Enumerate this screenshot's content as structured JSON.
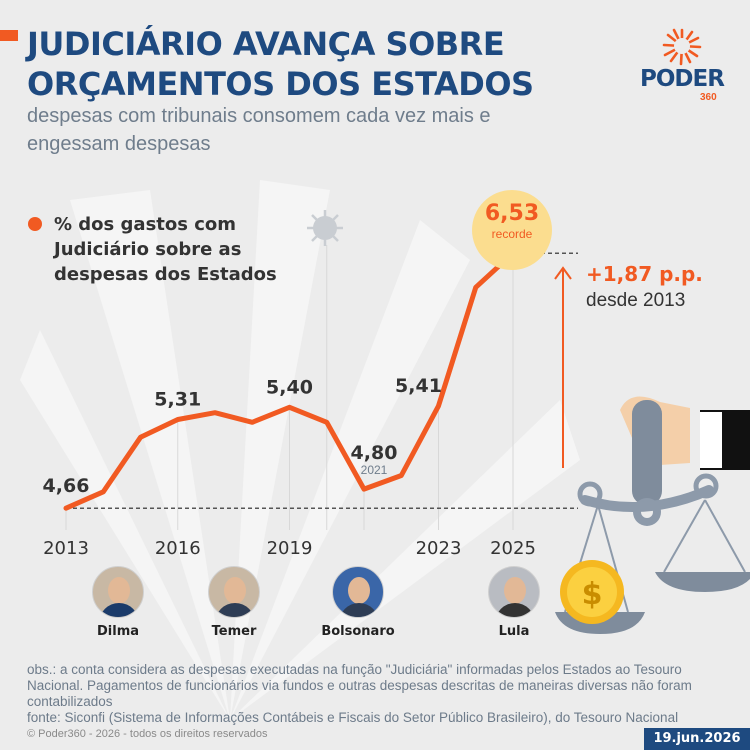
{
  "header": {
    "title_line1": "JUDICIÁRIO AVANÇA SOBRE",
    "title_line2": "ORÇAMENTOS DOS ESTADOS",
    "subtitle": "despesas com tribunais consomem cada vez mais e engessam despesas"
  },
  "brand": {
    "name": "PODER",
    "number": "360"
  },
  "legend": {
    "label": "% dos gastos com Judiciário sobre as despesas dos Estados"
  },
  "highlight": {
    "value": "6,53",
    "label": "recorde",
    "delta": "+1,87 p.p.",
    "delta_sub": "desde 2013"
  },
  "presidents": [
    {
      "name": "Dilma"
    },
    {
      "name": "Temer"
    },
    {
      "name": "Bolsonaro"
    },
    {
      "name": "Lula"
    }
  ],
  "chart_data": {
    "type": "line",
    "series": [
      {
        "name": "% dos gastos com Judiciário sobre as despesas dos Estados",
        "x": [
          2013,
          2014,
          2015,
          2016,
          2017,
          2018,
          2019,
          2020,
          2021,
          2022,
          2023,
          2024,
          2025
        ],
        "values": [
          4.66,
          4.78,
          5.18,
          5.31,
          5.36,
          5.29,
          5.4,
          5.29,
          4.8,
          4.9,
          5.41,
          6.28,
          6.53
        ]
      }
    ],
    "x_tick_labels": [
      "2013",
      "2016",
      "2019",
      "2023",
      "2025"
    ],
    "point_labels": [
      {
        "x": 2013,
        "text": "4,66"
      },
      {
        "x": 2016,
        "text": "5,31"
      },
      {
        "x": 2019,
        "text": "5,40"
      },
      {
        "x": 2021,
        "text": "4,80",
        "sub": "2021"
      },
      {
        "x": 2023,
        "text": "5,41"
      }
    ],
    "xlim": [
      2013,
      2025
    ],
    "ylim": [
      4.5,
      6.7
    ],
    "grid": false,
    "colors": {
      "line": "#f15a22",
      "grid": "#d8d8d8",
      "baseline": "#222222"
    }
  },
  "footer": {
    "note": "obs.: a conta considera as despesas executadas na função \"Judiciária\" informadas pelos Estados ao Tesouro Nacional. Pagamentos de funcionários via fundos e outras despesas descritas de maneiras diversas não foram contabilizados",
    "source": "fonte: Siconfi (Sistema de Informações Contábeis e Fiscais do Setor Público Brasileiro), do Tesouro Nacional",
    "copyright": "© Poder360 - 2026 - todos os direitos reservados",
    "date": "19.jun.2026"
  }
}
